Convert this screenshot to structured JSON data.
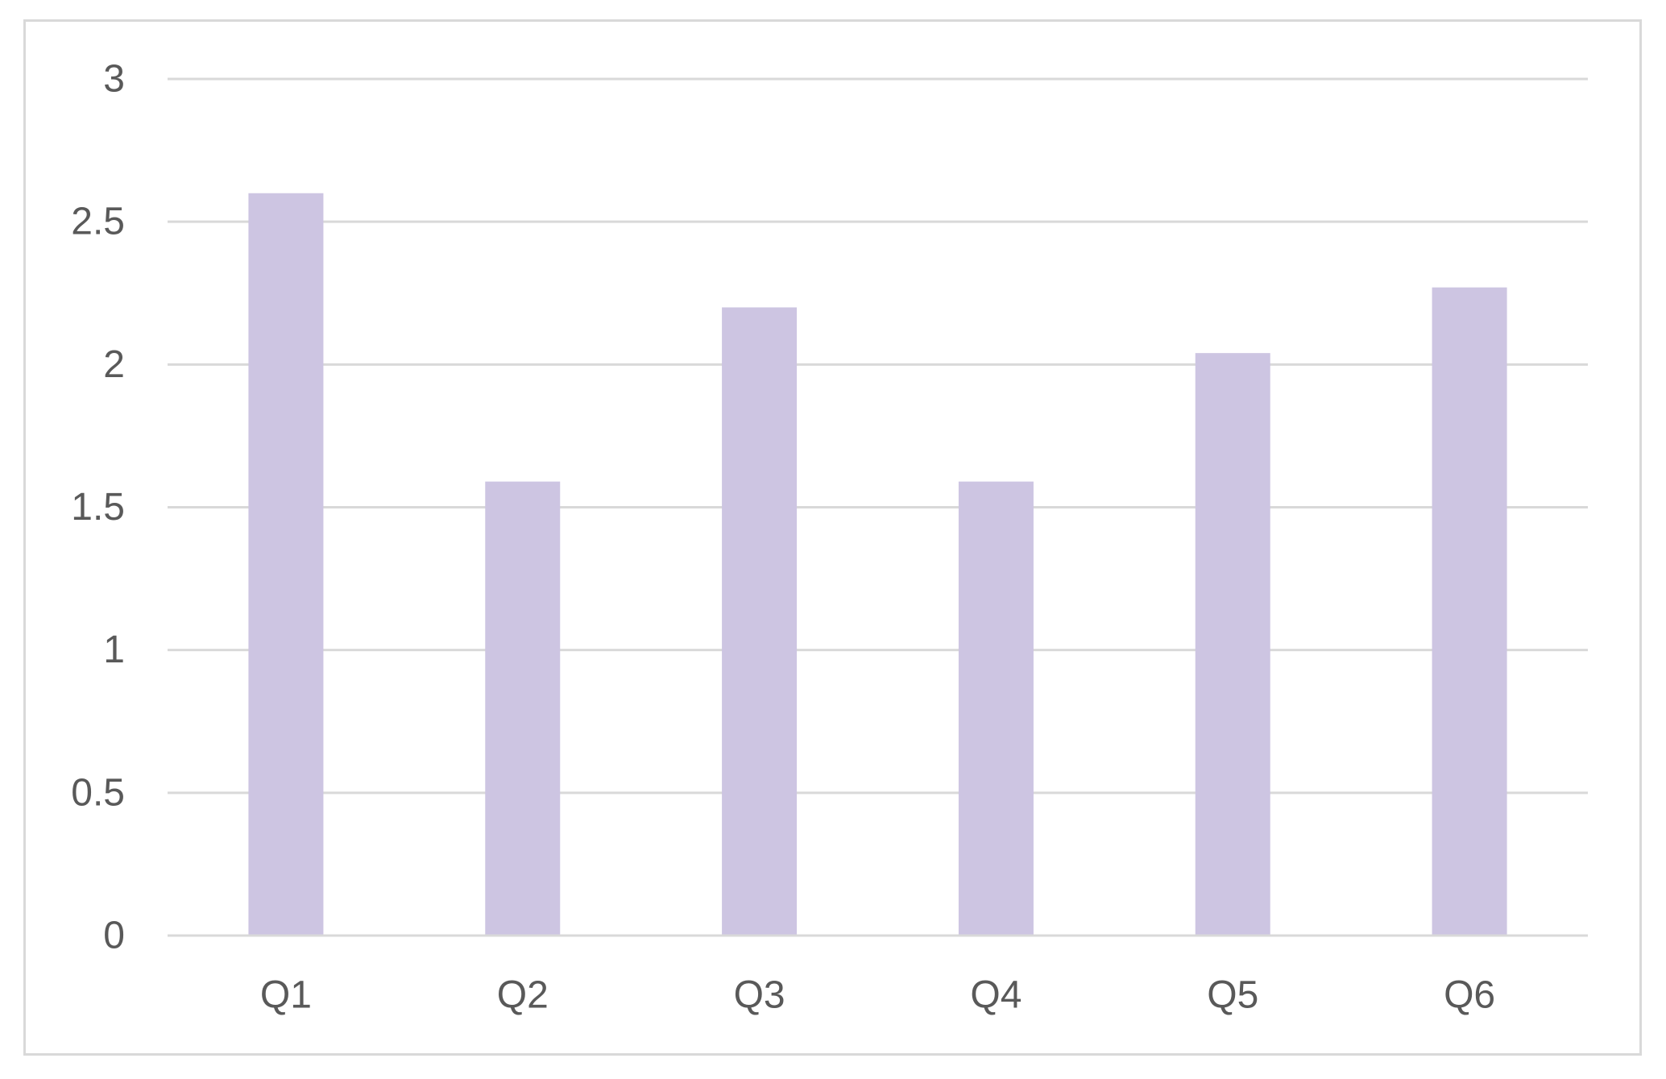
{
  "chart_data": {
    "type": "bar",
    "categories": [
      "Q1",
      "Q2",
      "Q3",
      "Q4",
      "Q5",
      "Q6"
    ],
    "series": [
      {
        "values": [
          2.6,
          1.59,
          2.2,
          1.59,
          2.04,
          2.27
        ]
      }
    ],
    "title": "",
    "xlabel": "",
    "ylabel": "",
    "ylim": [
      0,
      3
    ],
    "yticks": [
      "0",
      "0.5",
      "1",
      "1.5",
      "2",
      "2.5",
      "3"
    ],
    "ytick_values": [
      0,
      0.5,
      1,
      1.5,
      2,
      2.5,
      3
    ],
    "grid": true,
    "legend": "none",
    "colors": {
      "bar": "#cdc5e2",
      "grid": "#d9d9d9",
      "text": "#595959",
      "border": "#d9d9d9"
    }
  }
}
